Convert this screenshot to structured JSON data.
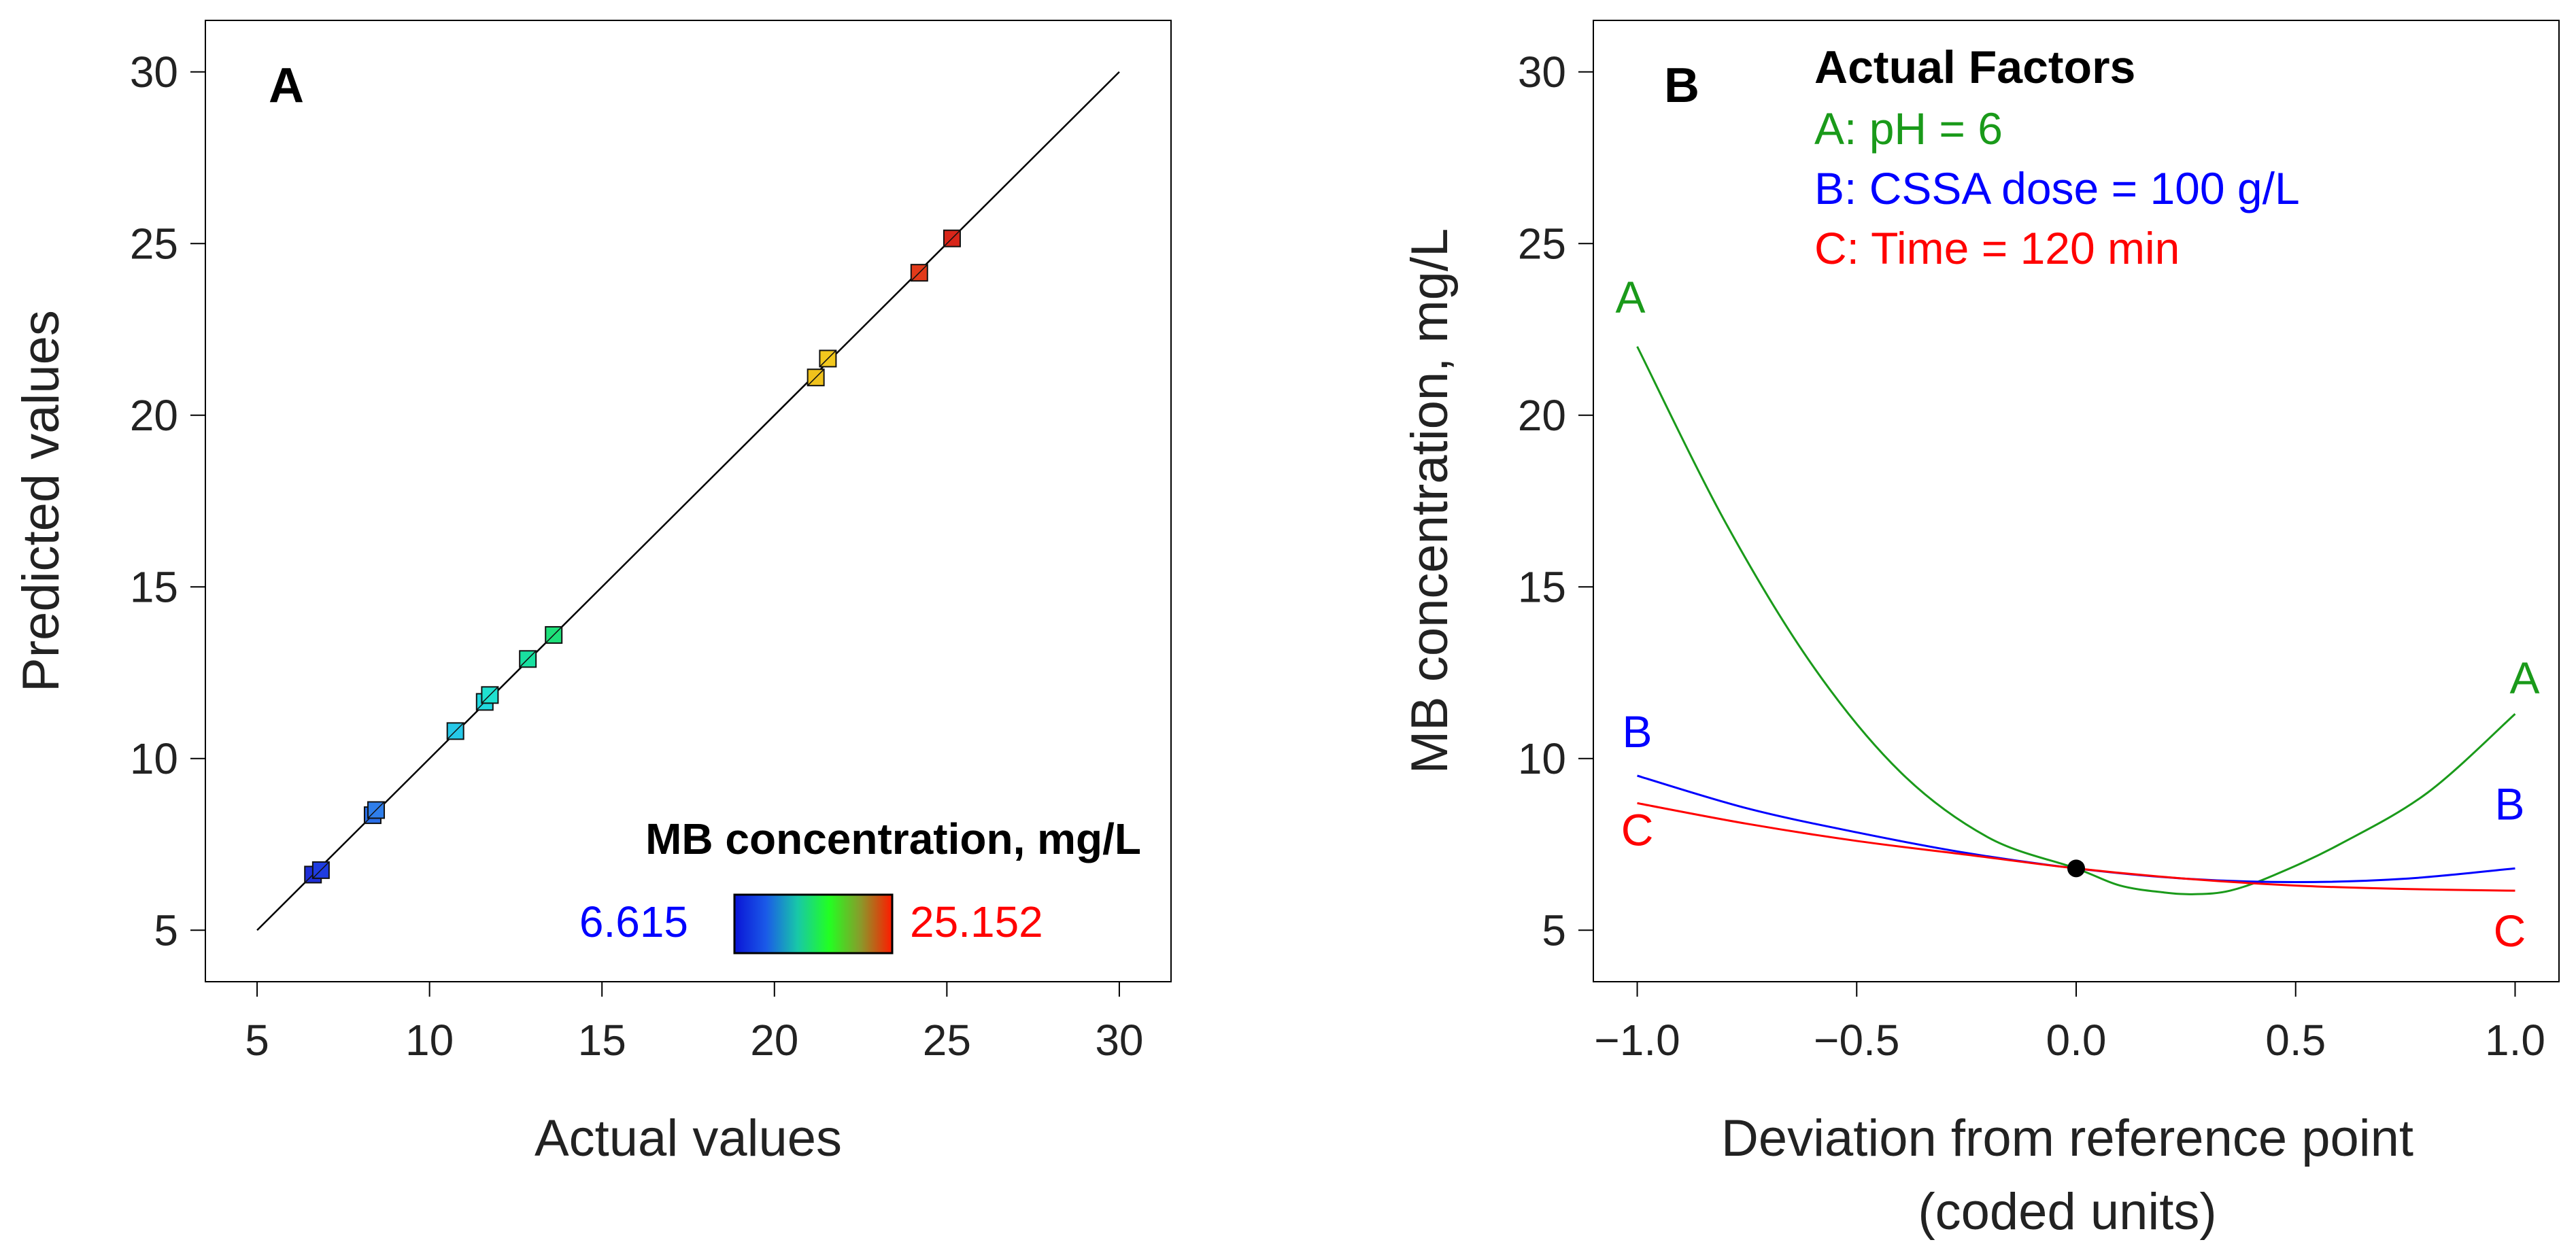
{
  "chart_data": [
    {
      "panel": "A",
      "type": "scatter",
      "title": "",
      "xlabel": "Actual values",
      "ylabel": "Predicted values",
      "xlim": [
        3.5,
        31.5
      ],
      "ylim": [
        3.5,
        31.5
      ],
      "xticks": [
        5,
        10,
        15,
        20,
        25,
        30
      ],
      "yticks": [
        5,
        10,
        15,
        20,
        25,
        30
      ],
      "grid": false,
      "reference_line": {
        "x": [
          5,
          30
        ],
        "y": [
          5,
          30
        ]
      },
      "points": [
        {
          "x": 6.62,
          "y": 6.62,
          "color": "#1f2fd8"
        },
        {
          "x": 6.85,
          "y": 6.75,
          "color": "#1f3de0"
        },
        {
          "x": 8.35,
          "y": 8.35,
          "color": "#2a6ee6"
        },
        {
          "x": 8.45,
          "y": 8.5,
          "color": "#2f7eea"
        },
        {
          "x": 10.75,
          "y": 10.8,
          "color": "#26c8e8"
        },
        {
          "x": 11.6,
          "y": 11.65,
          "color": "#22d8e0"
        },
        {
          "x": 11.75,
          "y": 11.85,
          "color": "#1fe0d0"
        },
        {
          "x": 12.85,
          "y": 12.9,
          "color": "#19e0a0"
        },
        {
          "x": 13.6,
          "y": 13.6,
          "color": "#1ee07a"
        },
        {
          "x": 21.2,
          "y": 21.1,
          "color": "#f0c21c"
        },
        {
          "x": 21.55,
          "y": 21.65,
          "color": "#f2c81e"
        },
        {
          "x": 24.2,
          "y": 24.15,
          "color": "#e23a1a"
        },
        {
          "x": 25.15,
          "y": 25.15,
          "color": "#d8261a"
        }
      ],
      "colorbar": {
        "title": "MB concentration, mg/L",
        "min_label": "6.615",
        "max_label": "25.152",
        "min_color": "#0000ff",
        "max_color": "#ff0000",
        "stops": [
          "#0a14d6",
          "#1a5ae8",
          "#18c8a8",
          "#22ff22",
          "#8a9a2a",
          "#ff1a00"
        ]
      }
    },
    {
      "panel": "B",
      "type": "line",
      "title": "",
      "xlabel": [
        "Deviation from reference point",
        "(coded units)"
      ],
      "ylabel": "MB concentration, mg/L",
      "xlim": [
        -1.1,
        1.1
      ],
      "ylim": [
        3.5,
        31.5
      ],
      "xticks": [
        -1.0,
        -0.5,
        0.0,
        0.5,
        1.0
      ],
      "xtick_labels": [
        "−1.0",
        "−0.5",
        "0.0",
        "0.5",
        "1.0"
      ],
      "yticks": [
        5,
        10,
        15,
        20,
        25,
        30
      ],
      "grid": false,
      "legend_title": "Actual Factors",
      "legend": [
        {
          "text": "A: pH = 6",
          "color": "#1a9a1a"
        },
        {
          "text": "B: CSSA dose = 100 g/L",
          "color": "#0000ff"
        },
        {
          "text": "C: Time = 120 min",
          "color": "#ff0000"
        }
      ],
      "reference_point": {
        "x": 0.0,
        "y": 6.8
      },
      "series": [
        {
          "name": "A",
          "color": "#1a9a1a",
          "label_left": "A",
          "label_right": "A",
          "x": [
            -1.0,
            -0.8,
            -0.6,
            -0.4,
            -0.2,
            0.0,
            0.1,
            0.2,
            0.27,
            0.35,
            0.45,
            0.6,
            0.8,
            1.0
          ],
          "y": [
            22.0,
            16.9,
            12.7,
            9.6,
            7.7,
            6.8,
            6.3,
            6.1,
            6.05,
            6.15,
            6.6,
            7.5,
            9.0,
            11.3
          ]
        },
        {
          "name": "B",
          "color": "#0000ff",
          "label_left": "B",
          "label_right": "B",
          "x": [
            -1.0,
            -0.75,
            -0.5,
            -0.25,
            0.0,
            0.25,
            0.5,
            0.75,
            1.0
          ],
          "y": [
            9.5,
            8.55,
            7.85,
            7.25,
            6.8,
            6.5,
            6.4,
            6.5,
            6.8
          ]
        },
        {
          "name": "C",
          "color": "#ff0000",
          "label_left": "C",
          "label_right": "C",
          "x": [
            -1.0,
            -0.75,
            -0.5,
            -0.25,
            0.0,
            0.25,
            0.5,
            0.75,
            1.0
          ],
          "y": [
            8.7,
            8.1,
            7.6,
            7.2,
            6.8,
            6.5,
            6.3,
            6.2,
            6.15
          ]
        }
      ]
    }
  ]
}
